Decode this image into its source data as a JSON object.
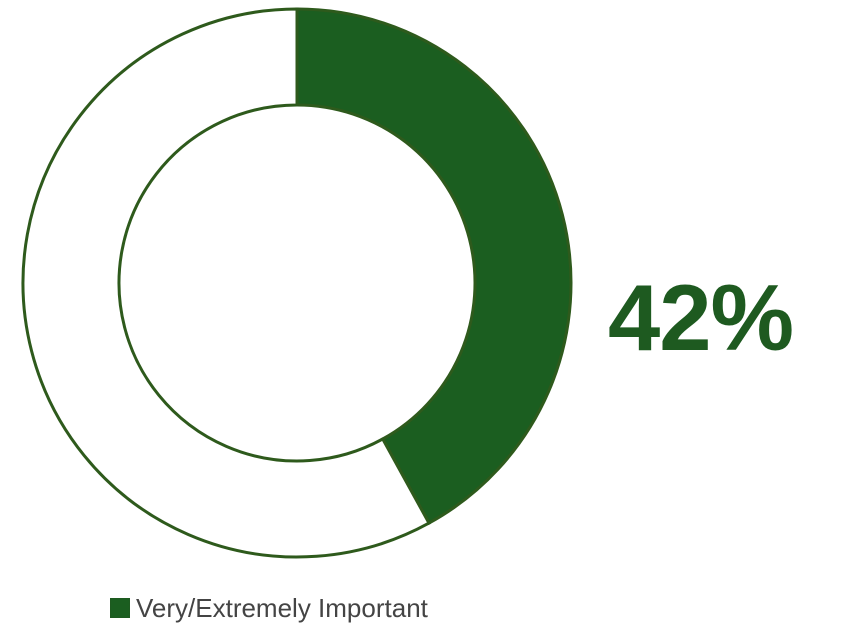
{
  "chart_data": {
    "type": "pie",
    "variant": "donut",
    "slices": [
      {
        "label": "Very/Extremely Important",
        "value": 42,
        "color": "#1b5e20"
      },
      {
        "label": "",
        "value": 58,
        "color": "#ffffff"
      }
    ],
    "center_value_text": "42%",
    "legend": {
      "placement": "bottom",
      "entries": [
        "Very/Extremely Important"
      ]
    },
    "outline_color": "#2e5a1c"
  }
}
